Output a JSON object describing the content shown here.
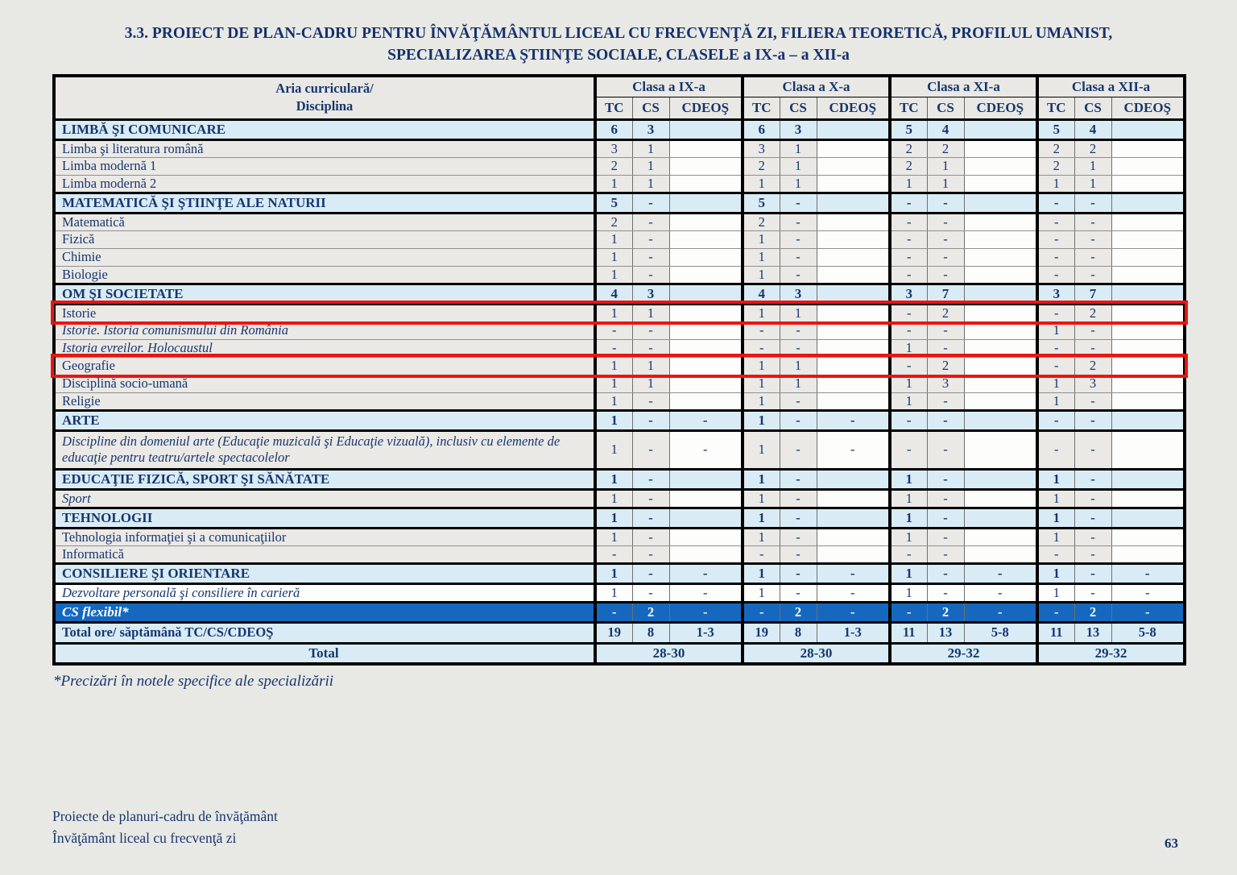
{
  "page": {
    "title_line1": "3.3. PROIECT DE PLAN-CADRU PENTRU ÎNVĂŢĂMÂNTUL LICEAL CU FRECVENŢĂ ZI, FILIERA TEORETICĂ, PROFILUL UMANIST,",
    "title_line2": "SPECIALIZAREA ŞTIINŢE SOCIALE, CLASELE a IX-a – a XII-a",
    "footnote": "*Precizări în notele specifice ale specializării",
    "footer_line1": "Proiecte de planuri-cadru de învăţământ",
    "footer_line2": "Învăţământ liceal cu frecvenţă zi",
    "page_number": "63"
  },
  "colors": {
    "text_navy": "#17366e",
    "category_row_blue": "#d9ecf6",
    "cs_flexibil_blue": "#1568be",
    "highlight_red": "#ec1410",
    "page_background": "#e8e8e5"
  },
  "table": {
    "corner_header_line1": "Aria curriculară/",
    "corner_header_line2": "Disciplina",
    "class_groups": [
      "Clasa a IX-a",
      "Clasa a X-a",
      "Clasa a XI-a",
      "Clasa a XII-a"
    ],
    "sub_headers": [
      "TC",
      "CS",
      "CDEOŞ"
    ],
    "rows": [
      {
        "label": "LIMBĂ ŞI COMUNICARE",
        "type": "category",
        "cells": [
          "6",
          "3",
          "",
          "6",
          "3",
          "",
          "5",
          "4",
          "",
          "5",
          "4",
          ""
        ]
      },
      {
        "label": "Limba şi literatura română",
        "type": "subject",
        "cells": [
          "3",
          "1",
          "",
          "3",
          "1",
          "",
          "2",
          "2",
          "",
          "2",
          "2",
          ""
        ]
      },
      {
        "label": "Limba modernă 1",
        "type": "subject",
        "cells": [
          "2",
          "1",
          "",
          "2",
          "1",
          "",
          "2",
          "1",
          "",
          "2",
          "1",
          ""
        ]
      },
      {
        "label": "Limba modernă 2",
        "type": "subject",
        "cells": [
          "1",
          "1",
          "",
          "1",
          "1",
          "",
          "1",
          "1",
          "",
          "1",
          "1",
          ""
        ]
      },
      {
        "label": "MATEMATICĂ ŞI ŞTIINŢE ALE NATURII",
        "type": "category",
        "cells": [
          "5",
          "-",
          "",
          "5",
          "-",
          "",
          "-",
          "-",
          "",
          "-",
          "-",
          ""
        ]
      },
      {
        "label": "Matematică",
        "type": "subject",
        "cells": [
          "2",
          "-",
          "",
          "2",
          "-",
          "",
          "-",
          "-",
          "",
          "-",
          "-",
          ""
        ]
      },
      {
        "label": "Fizică",
        "type": "subject",
        "cells": [
          "1",
          "-",
          "",
          "1",
          "-",
          "",
          "-",
          "-",
          "",
          "-",
          "-",
          ""
        ]
      },
      {
        "label": "Chimie",
        "type": "subject",
        "cells": [
          "1",
          "-",
          "",
          "1",
          "-",
          "",
          "-",
          "-",
          "",
          "-",
          "-",
          ""
        ]
      },
      {
        "label": "Biologie",
        "type": "subject",
        "cells": [
          "1",
          "-",
          "",
          "1",
          "-",
          "",
          "-",
          "-",
          "",
          "-",
          "-",
          ""
        ]
      },
      {
        "label": "OM ŞI SOCIETATE",
        "type": "category",
        "cells": [
          "4",
          "3",
          "",
          "4",
          "3",
          "",
          "3",
          "7",
          "",
          "3",
          "7",
          ""
        ]
      },
      {
        "label": "Istorie",
        "type": "subject",
        "highlight": true,
        "cells": [
          "1",
          "1",
          "",
          "1",
          "1",
          "",
          "-",
          "2",
          "",
          "-",
          "2",
          ""
        ]
      },
      {
        "label": "Istorie. Istoria comunismului din România",
        "type": "subject",
        "italic": true,
        "cells": [
          "-",
          "-",
          "",
          "-",
          "-",
          "",
          "-",
          "-",
          "",
          "1",
          "-",
          ""
        ]
      },
      {
        "label": "Istoria evreilor. Holocaustul",
        "type": "subject",
        "italic": true,
        "cells": [
          "-",
          "-",
          "",
          "-",
          "-",
          "",
          "1",
          "-",
          "",
          "-",
          "-",
          ""
        ]
      },
      {
        "label": "Geografie",
        "type": "subject",
        "highlight": true,
        "cells": [
          "1",
          "1",
          "",
          "1",
          "1",
          "",
          "-",
          "2",
          "",
          "-",
          "2",
          ""
        ]
      },
      {
        "label": "Disciplină socio-umană",
        "type": "subject",
        "cells": [
          "1",
          "1",
          "",
          "1",
          "1",
          "",
          "1",
          "3",
          "",
          "1",
          "3",
          ""
        ]
      },
      {
        "label": "Religie",
        "type": "subject",
        "cells": [
          "1",
          "-",
          "",
          "1",
          "-",
          "",
          "1",
          "-",
          "",
          "1",
          "-",
          ""
        ]
      },
      {
        "label": "ARTE",
        "type": "category",
        "cells": [
          "1",
          "-",
          "-",
          "1",
          "-",
          "-",
          "-",
          "-",
          "",
          "-",
          "-",
          ""
        ]
      },
      {
        "label": "Discipline din domeniul arte (Educaţie muzicală şi Educaţie vizuală), inclusiv cu elemente de educaţie pentru teatru/artele spectacolelor",
        "type": "subject",
        "italic": true,
        "tall": true,
        "cells": [
          "1",
          "-",
          "-",
          "1",
          "-",
          "-",
          "-",
          "-",
          "",
          "-",
          "-",
          ""
        ]
      },
      {
        "label": "EDUCAŢIE FIZICĂ, SPORT ŞI SĂNĂTATE",
        "type": "category",
        "cells": [
          "1",
          "-",
          "",
          "1",
          "-",
          "",
          "1",
          "-",
          "",
          "1",
          "-",
          ""
        ]
      },
      {
        "label": "Sport",
        "type": "subject",
        "italic": true,
        "cells": [
          "1",
          "-",
          "",
          "1",
          "-",
          "",
          "1",
          "-",
          "",
          "1",
          "-",
          ""
        ]
      },
      {
        "label": "TEHNOLOGII",
        "type": "category",
        "cells": [
          "1",
          "-",
          "",
          "1",
          "-",
          "",
          "1",
          "-",
          "",
          "1",
          "-",
          ""
        ]
      },
      {
        "label": "Tehnologia informaţiei şi a comunicaţiilor",
        "type": "subject",
        "cells": [
          "1",
          "-",
          "",
          "1",
          "-",
          "",
          "1",
          "-",
          "",
          "1",
          "-",
          ""
        ]
      },
      {
        "label": "Informatică",
        "type": "subject",
        "cells": [
          "-",
          "-",
          "",
          "-",
          "-",
          "",
          "-",
          "-",
          "",
          "-",
          "-",
          ""
        ]
      },
      {
        "label": "CONSILIERE ŞI ORIENTARE",
        "type": "category",
        "cells": [
          "1",
          "-",
          "-",
          "1",
          "-",
          "-",
          "1",
          "-",
          "-",
          "1",
          "-",
          "-"
        ]
      },
      {
        "label": "Dezvoltare personală şi consiliere în carieră",
        "type": "subject",
        "italic": true,
        "white": true,
        "cells": [
          "1",
          "-",
          "-",
          "1",
          "-",
          "-",
          "1",
          "-",
          "-",
          "1",
          "-",
          "-"
        ]
      },
      {
        "label": "CS flexibil*",
        "type": "cs-flexibil",
        "cells": [
          "-",
          "2",
          "-",
          "-",
          "2",
          "-",
          "-",
          "2",
          "-",
          "-",
          "2",
          "-"
        ]
      },
      {
        "label": "Total ore/ săptămână TC/CS/CDEOŞ",
        "type": "total",
        "cells": [
          "19",
          "8",
          "1-3",
          "19",
          "8",
          "1-3",
          "11",
          "13",
          "5-8",
          "11",
          "13",
          "5-8"
        ]
      },
      {
        "label": "Total",
        "type": "grand-total",
        "merged": [
          "28-30",
          "28-30",
          "29-32",
          "29-32"
        ]
      }
    ]
  }
}
